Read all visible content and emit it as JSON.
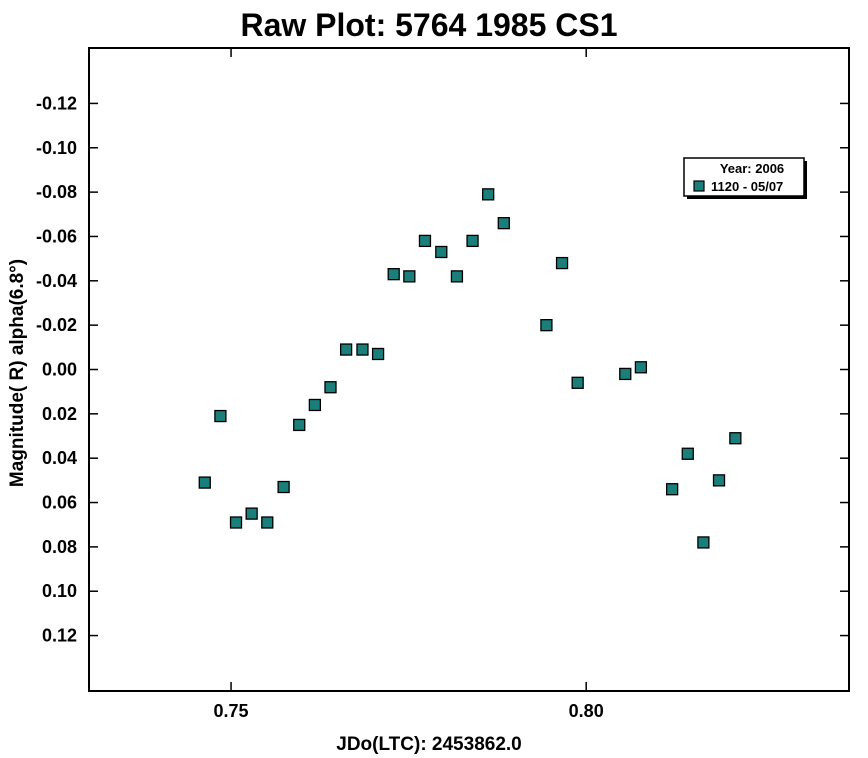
{
  "chart_data": {
    "type": "scatter",
    "title": "Raw Plot: 5764 1985 CS1",
    "xlabel": "JDo(LTC): 2453862.0",
    "ylabel": "Magnitude( R) alpha(6.8°)",
    "xlim": [
      0.73,
      0.837
    ],
    "ylim": [
      -0.145,
      0.145
    ],
    "y_inverted": true,
    "x_ticks": [
      "0.75",
      "0.80"
    ],
    "x_tick_values": [
      0.75,
      0.8
    ],
    "y_ticks": [
      "-0.12",
      "-0.10",
      "-0.08",
      "-0.06",
      "-0.04",
      "-0.02",
      "0.00",
      "0.02",
      "0.04",
      "0.06",
      "0.08",
      "0.10",
      "0.12"
    ],
    "y_tick_values": [
      -0.12,
      -0.1,
      -0.08,
      -0.06,
      -0.04,
      -0.02,
      0.0,
      0.02,
      0.04,
      0.06,
      0.08,
      0.1,
      0.12
    ],
    "grid": false,
    "legend": {
      "title": "Year: 2006",
      "placement": "top-right",
      "entries": [
        "1120 - 05/07"
      ]
    },
    "series": [
      {
        "name": "1120 - 05/07",
        "color": "#1a7f7a",
        "marker": "square",
        "x": [
          0.7463,
          0.7485,
          0.7507,
          0.7529,
          0.7551,
          0.7574,
          0.7596,
          0.7618,
          0.764,
          0.7662,
          0.7685,
          0.7707,
          0.7729,
          0.7751,
          0.7773,
          0.7796,
          0.7818,
          0.784,
          0.7862,
          0.7884,
          0.7944,
          0.7966,
          0.7988,
          0.8055,
          0.8077,
          0.8121,
          0.8143,
          0.8165,
          0.8187,
          0.821
        ],
        "y": [
          0.051,
          0.021,
          0.069,
          0.065,
          0.069,
          0.053,
          0.025,
          0.016,
          0.008,
          -0.009,
          -0.009,
          -0.007,
          -0.043,
          -0.042,
          -0.058,
          -0.053,
          -0.042,
          -0.058,
          -0.079,
          -0.066,
          -0.02,
          -0.048,
          0.006,
          0.002,
          -0.001,
          0.054,
          0.038,
          0.078,
          0.05,
          0.031
        ]
      }
    ]
  }
}
